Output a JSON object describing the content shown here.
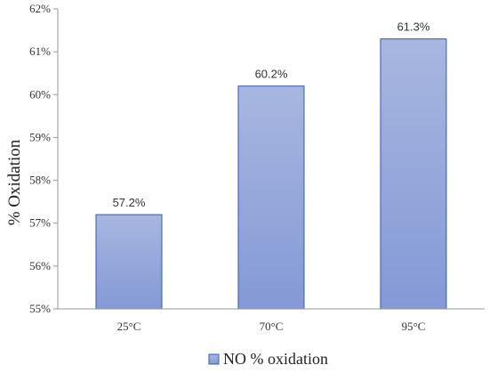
{
  "chart_data": {
    "type": "bar",
    "categories": [
      "25°C",
      "70°C",
      "95°C"
    ],
    "series": [
      {
        "name": "NO % oxidation",
        "values": [
          57.2,
          60.2,
          61.3
        ]
      }
    ],
    "data_labels": [
      "57.2%",
      "60.2%",
      "61.3%"
    ],
    "ylabel": "% Oxidation",
    "xlabel": "",
    "ylim": [
      55,
      62
    ],
    "yticks": [
      55,
      56,
      57,
      58,
      59,
      60,
      61,
      62
    ],
    "ytick_labels": [
      "55%",
      "56%",
      "57%",
      "58%",
      "59%",
      "60%",
      "61%",
      "62%"
    ],
    "grid": false,
    "legend_position": "bottom",
    "bar_color_top": "#a8b7e0",
    "bar_color_bottom": "#8499d6",
    "bar_edge_color": "#3a56b0"
  }
}
